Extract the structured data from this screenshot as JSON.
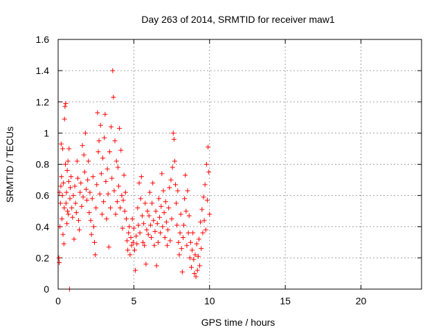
{
  "chart_data": {
    "type": "scatter",
    "title": "Day 263 of 2014, SRMTID for receiver maw1",
    "xlabel": "GPS time / hours",
    "ylabel": "SRMTID / TECUs",
    "xlim": [
      0,
      24
    ],
    "ylim": [
      0,
      1.6
    ],
    "xticks": [
      0,
      5,
      10,
      15,
      20
    ],
    "xtick_labels": [
      "0",
      "5",
      "10",
      "15",
      "20"
    ],
    "yticks": [
      0,
      0.2,
      0.4,
      0.6,
      0.8,
      1.0,
      1.2,
      1.4,
      1.6
    ],
    "ytick_labels": [
      "0",
      "0.2",
      "0.4",
      "0.6",
      "0.8",
      "1",
      "1.2",
      "1.4",
      "1.6"
    ],
    "grid": true,
    "marker": "+",
    "marker_color": "#ff0000",
    "series": [
      {
        "name": "maw1",
        "points": [
          [
            0.05,
            0.2
          ],
          [
            0.08,
            0.17
          ],
          [
            0.1,
            0.62
          ],
          [
            0.12,
            0.4
          ],
          [
            0.15,
            0.55
          ],
          [
            0.18,
            0.66
          ],
          [
            0.2,
            0.93
          ],
          [
            0.22,
            0.72
          ],
          [
            0.25,
            0.45
          ],
          [
            0.28,
            0.6
          ],
          [
            0.3,
            0.9
          ],
          [
            0.32,
            0.35
          ],
          [
            0.35,
            0.68
          ],
          [
            0.38,
            0.29
          ],
          [
            0.4,
            0.52
          ],
          [
            0.42,
            1.09
          ],
          [
            0.45,
            1.17
          ],
          [
            0.48,
            0.8
          ],
          [
            0.5,
            1.19
          ],
          [
            0.52,
            0.55
          ],
          [
            0.55,
            0.62
          ],
          [
            0.58,
            0.42
          ],
          [
            0.6,
            0.76
          ],
          [
            0.62,
            0.5
          ],
          [
            0.65,
            0.82
          ],
          [
            0.68,
            0.48
          ],
          [
            0.7,
            0.69
          ],
          [
            0.72,
            0.9
          ],
          [
            0.75,
            0.0
          ],
          [
            0.78,
            0.58
          ],
          [
            0.8,
            0.65
          ],
          [
            0.85,
            0.72
          ],
          [
            0.9,
            0.52
          ],
          [
            0.95,
            0.46
          ],
          [
            1.0,
            0.6
          ],
          [
            1.05,
            0.32
          ],
          [
            1.1,
            0.66
          ],
          [
            1.15,
            0.55
          ],
          [
            1.2,
            0.49
          ],
          [
            1.25,
            0.82
          ],
          [
            1.3,
            0.71
          ],
          [
            1.35,
            0.44
          ],
          [
            1.4,
            0.38
          ],
          [
            1.45,
            0.62
          ],
          [
            1.5,
            0.68
          ],
          [
            1.55,
            0.53
          ],
          [
            1.6,
            0.92
          ],
          [
            1.65,
            0.59
          ],
          [
            1.7,
            0.86
          ],
          [
            1.75,
            0.75
          ],
          [
            1.8,
            1.0
          ],
          [
            1.85,
            0.64
          ],
          [
            1.9,
            0.57
          ],
          [
            1.95,
            0.7
          ],
          [
            2.0,
            0.82
          ],
          [
            2.05,
            0.49
          ],
          [
            2.1,
            0.62
          ],
          [
            2.15,
            0.44
          ],
          [
            2.2,
            0.35
          ],
          [
            2.25,
            0.58
          ],
          [
            2.3,
            0.72
          ],
          [
            2.35,
            0.4
          ],
          [
            2.4,
            0.3
          ],
          [
            2.45,
            0.22
          ],
          [
            2.5,
            0.52
          ],
          [
            2.55,
            0.67
          ],
          [
            2.6,
            1.13
          ],
          [
            2.65,
            0.88
          ],
          [
            2.7,
            0.95
          ],
          [
            2.75,
            0.61
          ],
          [
            2.8,
            1.05
          ],
          [
            2.85,
            0.74
          ],
          [
            2.9,
            0.48
          ],
          [
            2.95,
            0.84
          ],
          [
            3.0,
            0.56
          ],
          [
            3.05,
            0.97
          ],
          [
            3.1,
            1.12
          ],
          [
            3.15,
            0.69
          ],
          [
            3.2,
            0.45
          ],
          [
            3.25,
            0.77
          ],
          [
            3.3,
            0.61
          ],
          [
            3.35,
            0.27
          ],
          [
            3.4,
            0.88
          ],
          [
            3.45,
            0.52
          ],
          [
            3.5,
            1.04
          ],
          [
            3.55,
            0.71
          ],
          [
            3.6,
            1.4
          ],
          [
            3.65,
            1.23
          ],
          [
            3.7,
            0.63
          ],
          [
            3.75,
            0.95
          ],
          [
            3.8,
            0.48
          ],
          [
            3.85,
            0.82
          ],
          [
            3.9,
            0.56
          ],
          [
            3.95,
            0.78
          ],
          [
            4.0,
            0.66
          ],
          [
            4.05,
            1.03
          ],
          [
            4.1,
            0.52
          ],
          [
            4.15,
            0.89
          ],
          [
            4.2,
            0.6
          ],
          [
            4.25,
            0.39
          ],
          [
            4.3,
            0.57
          ],
          [
            4.35,
            0.73
          ],
          [
            4.4,
            0.5
          ],
          [
            4.45,
            0.62
          ],
          [
            4.5,
            0.45
          ],
          [
            4.55,
            0.31
          ],
          [
            4.6,
            0.25
          ],
          [
            4.65,
            0.36
          ],
          [
            4.7,
            0.4
          ],
          [
            4.75,
            0.22
          ],
          [
            4.8,
            0.33
          ],
          [
            4.85,
            0.28
          ],
          [
            4.9,
            0.45
          ],
          [
            4.95,
            0.3
          ],
          [
            5.0,
            0.39
          ],
          [
            5.05,
            0.25
          ],
          [
            5.1,
            0.12
          ],
          [
            5.15,
            0.34
          ],
          [
            5.2,
            0.29
          ],
          [
            5.25,
            0.52
          ],
          [
            5.3,
            0.41
          ],
          [
            5.35,
            0.68
          ],
          [
            5.4,
            0.36
          ],
          [
            5.45,
            0.58
          ],
          [
            5.5,
            0.72
          ],
          [
            5.55,
            0.47
          ],
          [
            5.6,
            0.3
          ],
          [
            5.65,
            0.42
          ],
          [
            5.7,
            0.28
          ],
          [
            5.75,
            0.55
          ],
          [
            5.8,
            0.16
          ],
          [
            5.85,
            0.38
          ],
          [
            5.9,
            0.5
          ],
          [
            5.95,
            0.35
          ],
          [
            6.0,
            0.47
          ],
          [
            6.05,
            0.62
          ],
          [
            6.1,
            0.41
          ],
          [
            6.15,
            0.33
          ],
          [
            6.2,
            0.55
          ],
          [
            6.25,
            0.68
          ],
          [
            6.3,
            0.44
          ],
          [
            6.35,
            0.28
          ],
          [
            6.4,
            0.37
          ],
          [
            6.45,
            0.5
          ],
          [
            6.5,
            0.15
          ],
          [
            6.55,
            0.42
          ],
          [
            6.6,
            0.3
          ],
          [
            6.65,
            0.58
          ],
          [
            6.7,
            0.46
          ],
          [
            6.75,
            0.36
          ],
          [
            6.8,
            0.53
          ],
          [
            6.85,
            0.74
          ],
          [
            6.9,
            0.4
          ],
          [
            6.95,
            0.63
          ],
          [
            7.0,
            0.49
          ],
          [
            7.05,
            0.33
          ],
          [
            7.1,
            0.56
          ],
          [
            7.15,
            0.43
          ],
          [
            7.2,
            0.28
          ],
          [
            7.25,
            0.38
          ],
          [
            7.3,
            0.52
          ],
          [
            7.35,
            0.65
          ],
          [
            7.4,
            0.31
          ],
          [
            7.45,
            0.7
          ],
          [
            7.5,
            0.45
          ],
          [
            7.55,
            0.78
          ],
          [
            7.6,
            1.0
          ],
          [
            7.65,
            0.96
          ],
          [
            7.7,
            0.82
          ],
          [
            7.75,
            0.67
          ],
          [
            7.8,
            0.55
          ],
          [
            7.85,
            0.41
          ],
          [
            7.9,
            0.63
          ],
          [
            7.95,
            0.3
          ],
          [
            8.0,
            0.22
          ],
          [
            8.05,
            0.36
          ],
          [
            8.1,
            0.48
          ],
          [
            8.15,
            0.26
          ],
          [
            8.2,
            0.11
          ],
          [
            8.25,
            0.33
          ],
          [
            8.3,
            0.41
          ],
          [
            8.35,
            0.58
          ],
          [
            8.4,
            0.73
          ],
          [
            8.45,
            0.5
          ],
          [
            8.5,
            0.28
          ],
          [
            8.55,
            0.63
          ],
          [
            8.6,
            0.36
          ],
          [
            8.65,
            0.47
          ],
          [
            8.7,
            0.2
          ],
          [
            8.75,
            0.3
          ],
          [
            8.8,
            0.14
          ],
          [
            8.85,
            0.25
          ],
          [
            8.9,
            0.36
          ],
          [
            8.95,
            0.19
          ],
          [
            9.0,
            0.1
          ],
          [
            9.05,
            0.22
          ],
          [
            9.1,
            0.08
          ],
          [
            9.15,
            0.29
          ],
          [
            9.2,
            0.12
          ],
          [
            9.25,
            0.21
          ],
          [
            9.3,
            0.32
          ],
          [
            9.35,
            0.15
          ],
          [
            9.4,
            0.43
          ],
          [
            9.45,
            0.26
          ],
          [
            9.5,
            0.51
          ],
          [
            9.55,
            0.36
          ],
          [
            9.6,
            0.59
          ],
          [
            9.65,
            0.44
          ],
          [
            9.7,
            0.67
          ],
          [
            9.75,
            0.38
          ],
          [
            9.8,
            0.8
          ],
          [
            9.85,
            0.57
          ],
          [
            9.9,
            0.91
          ],
          [
            9.95,
            0.75
          ],
          [
            10.0,
            0.48
          ]
        ]
      }
    ]
  }
}
